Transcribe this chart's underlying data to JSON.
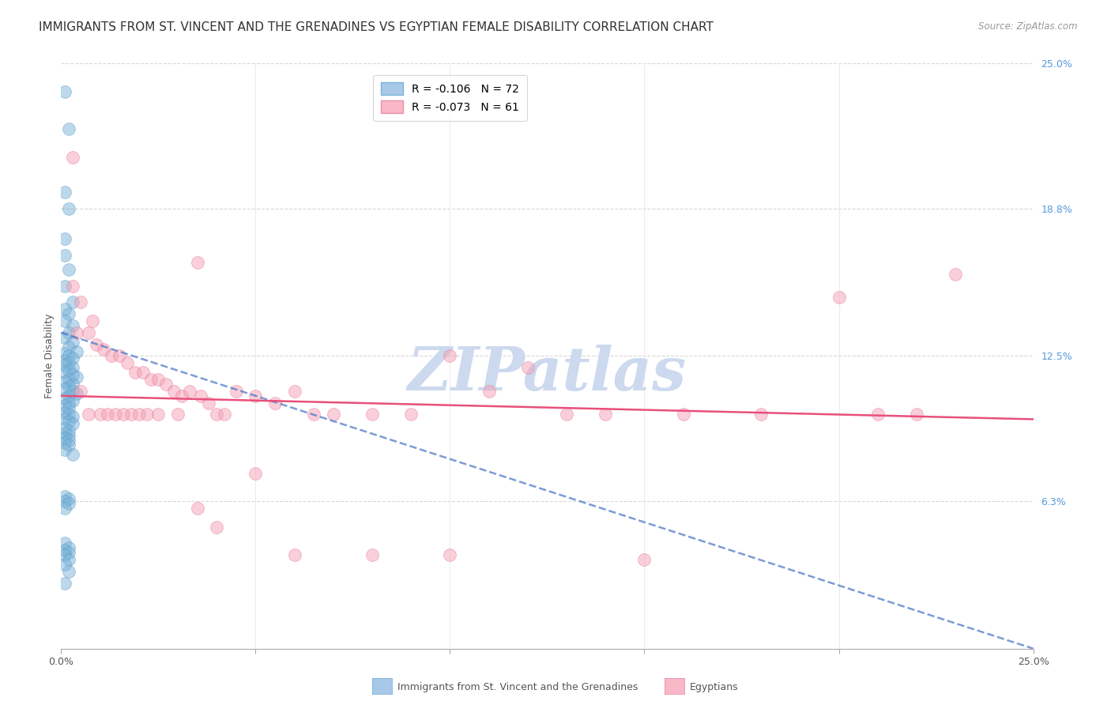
{
  "title": "IMMIGRANTS FROM ST. VINCENT AND THE GRENADINES VS EGYPTIAN FEMALE DISABILITY CORRELATION CHART",
  "source": "Source: ZipAtlas.com",
  "ylabel": "Female Disability",
  "x_min": 0.0,
  "x_max": 0.25,
  "y_min": 0.0,
  "y_max": 0.25,
  "y_ticks_right": [
    0.063,
    0.125,
    0.188,
    0.25
  ],
  "y_tick_labels_right": [
    "6.3%",
    "12.5%",
    "18.8%",
    "25.0%"
  ],
  "blue_scatter_x": [
    0.001,
    0.002,
    0.001,
    0.002,
    0.001,
    0.001,
    0.002,
    0.001,
    0.003,
    0.001,
    0.002,
    0.001,
    0.003,
    0.002,
    0.001,
    0.003,
    0.002,
    0.004,
    0.001,
    0.002,
    0.003,
    0.001,
    0.002,
    0.001,
    0.003,
    0.002,
    0.001,
    0.003,
    0.004,
    0.002,
    0.001,
    0.003,
    0.002,
    0.001,
    0.003,
    0.004,
    0.002,
    0.001,
    0.003,
    0.002,
    0.001,
    0.002,
    0.001,
    0.002,
    0.003,
    0.001,
    0.002,
    0.003,
    0.001,
    0.002,
    0.001,
    0.002,
    0.001,
    0.002,
    0.001,
    0.002,
    0.001,
    0.003,
    0.001,
    0.002,
    0.001,
    0.002,
    0.001,
    0.001,
    0.002,
    0.001,
    0.002,
    0.001,
    0.002,
    0.001,
    0.002,
    0.001
  ],
  "blue_scatter_y": [
    0.238,
    0.222,
    0.195,
    0.188,
    0.175,
    0.168,
    0.162,
    0.155,
    0.148,
    0.145,
    0.143,
    0.14,
    0.138,
    0.135,
    0.133,
    0.131,
    0.129,
    0.127,
    0.126,
    0.125,
    0.124,
    0.123,
    0.122,
    0.121,
    0.12,
    0.119,
    0.118,
    0.117,
    0.116,
    0.115,
    0.114,
    0.113,
    0.112,
    0.111,
    0.11,
    0.109,
    0.108,
    0.107,
    0.106,
    0.105,
    0.104,
    0.103,
    0.101,
    0.1,
    0.099,
    0.098,
    0.097,
    0.096,
    0.094,
    0.093,
    0.092,
    0.091,
    0.09,
    0.089,
    0.088,
    0.087,
    0.085,
    0.083,
    0.065,
    0.064,
    0.063,
    0.062,
    0.06,
    0.045,
    0.043,
    0.042,
    0.041,
    0.04,
    0.038,
    0.036,
    0.033,
    0.028
  ],
  "pink_scatter_x": [
    0.003,
    0.035,
    0.003,
    0.005,
    0.008,
    0.004,
    0.007,
    0.009,
    0.011,
    0.013,
    0.015,
    0.017,
    0.019,
    0.021,
    0.023,
    0.025,
    0.027,
    0.029,
    0.031,
    0.033,
    0.036,
    0.038,
    0.04,
    0.042,
    0.045,
    0.05,
    0.055,
    0.06,
    0.065,
    0.07,
    0.08,
    0.09,
    0.1,
    0.11,
    0.12,
    0.13,
    0.14,
    0.16,
    0.18,
    0.2,
    0.21,
    0.22,
    0.23,
    0.005,
    0.007,
    0.01,
    0.012,
    0.014,
    0.016,
    0.018,
    0.02,
    0.022,
    0.025,
    0.03,
    0.035,
    0.04,
    0.05,
    0.06,
    0.08,
    0.1,
    0.15
  ],
  "pink_scatter_y": [
    0.21,
    0.165,
    0.155,
    0.148,
    0.14,
    0.135,
    0.135,
    0.13,
    0.128,
    0.125,
    0.125,
    0.122,
    0.118,
    0.118,
    0.115,
    0.115,
    0.113,
    0.11,
    0.108,
    0.11,
    0.108,
    0.105,
    0.1,
    0.1,
    0.11,
    0.108,
    0.105,
    0.11,
    0.1,
    0.1,
    0.1,
    0.1,
    0.125,
    0.11,
    0.12,
    0.1,
    0.1,
    0.1,
    0.1,
    0.15,
    0.1,
    0.1,
    0.16,
    0.11,
    0.1,
    0.1,
    0.1,
    0.1,
    0.1,
    0.1,
    0.1,
    0.1,
    0.1,
    0.1,
    0.06,
    0.052,
    0.075,
    0.04,
    0.04,
    0.04,
    0.038
  ],
  "blue_line_x": [
    0.0,
    0.25
  ],
  "blue_line_y": [
    0.135,
    0.0
  ],
  "pink_line_x": [
    0.0,
    0.25
  ],
  "pink_line_y": [
    0.108,
    0.098
  ],
  "watermark_text": "ZIPatlas",
  "watermark_color": "#ccd9ee",
  "background_color": "#ffffff",
  "grid_color": "#d8d8d8",
  "blue_color": "#7ab3d9",
  "pink_color": "#f4a0b5",
  "blue_edge_color": "#5a9bc8",
  "pink_edge_color": "#e87090",
  "blue_line_color": "#4472c4",
  "pink_line_color": "#e8507a",
  "title_fontsize": 11,
  "axis_label_fontsize": 9,
  "tick_fontsize": 9,
  "legend_fontsize": 10,
  "watermark_fontsize": 55,
  "dot_size": 130
}
